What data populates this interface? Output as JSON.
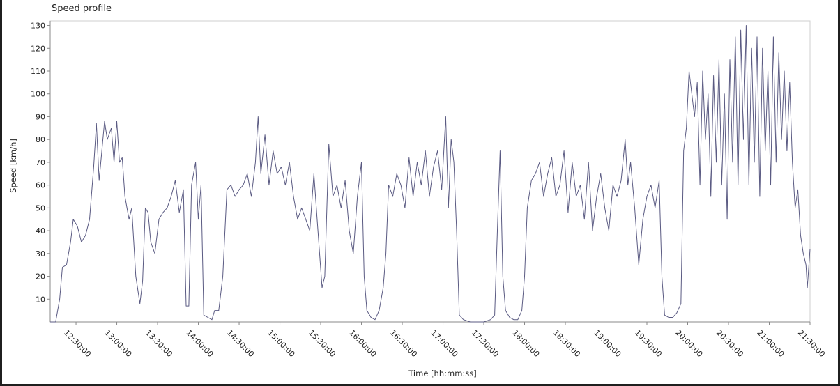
{
  "chart_data": {
    "type": "line",
    "title": "Speed profile",
    "xlabel": "Time  [hh:mm:ss]",
    "ylabel": "Speed [km/h]",
    "x_unit": "time of day",
    "xlim": [
      "12:11:00",
      "21:30:00"
    ],
    "ylim": [
      0,
      132
    ],
    "grid": true,
    "legend": "none",
    "line_color": "#5a5a82",
    "x_ticks": [
      "12:30:00",
      "13:00:00",
      "13:30:00",
      "14:00:00",
      "14:30:00",
      "15:00:00",
      "15:30:00",
      "16:00:00",
      "16:30:00",
      "17:00:00",
      "17:30:00",
      "18:00:00",
      "18:30:00",
      "19:00:00",
      "19:30:00",
      "20:00:00",
      "20:30:00",
      "21:00:00",
      "21:30:00"
    ],
    "y_ticks": [
      10,
      20,
      30,
      40,
      50,
      60,
      70,
      80,
      90,
      100,
      110,
      120,
      130
    ],
    "series": [
      {
        "points": [
          [
            "12:11:00",
            0
          ],
          [
            "12:15:00",
            0
          ],
          [
            "12:18:00",
            10
          ],
          [
            "12:20:00",
            24
          ],
          [
            "12:23:00",
            25
          ],
          [
            "12:26:00",
            35
          ],
          [
            "12:28:00",
            45
          ],
          [
            "12:31:00",
            42
          ],
          [
            "12:34:00",
            35
          ],
          [
            "12:37:00",
            38
          ],
          [
            "12:40:00",
            45
          ],
          [
            "12:43:00",
            68
          ],
          [
            "12:45:00",
            87
          ],
          [
            "12:47:00",
            62
          ],
          [
            "12:49:00",
            75
          ],
          [
            "12:51:00",
            88
          ],
          [
            "12:53:00",
            80
          ],
          [
            "12:56:00",
            85
          ],
          [
            "12:58:00",
            70
          ],
          [
            "13:00:00",
            88
          ],
          [
            "13:02:00",
            70
          ],
          [
            "13:04:00",
            72
          ],
          [
            "13:06:00",
            55
          ],
          [
            "13:09:00",
            45
          ],
          [
            "13:11:00",
            50
          ],
          [
            "13:14:00",
            20
          ],
          [
            "13:17:00",
            8
          ],
          [
            "13:19:00",
            18
          ],
          [
            "13:21:00",
            50
          ],
          [
            "13:23:00",
            48
          ],
          [
            "13:25:00",
            35
          ],
          [
            "13:28:00",
            30
          ],
          [
            "13:31:00",
            45
          ],
          [
            "13:34:00",
            48
          ],
          [
            "13:37:00",
            50
          ],
          [
            "13:40:00",
            55
          ],
          [
            "13:43:00",
            62
          ],
          [
            "13:46:00",
            48
          ],
          [
            "13:49:00",
            58
          ],
          [
            "13:51:00",
            7
          ],
          [
            "13:53:00",
            7
          ],
          [
            "13:55:00",
            60
          ],
          [
            "13:58:00",
            70
          ],
          [
            "14:00:00",
            45
          ],
          [
            "14:02:00",
            60
          ],
          [
            "14:04:00",
            3
          ],
          [
            "14:07:00",
            2
          ],
          [
            "14:10:00",
            1
          ],
          [
            "14:12:00",
            5
          ],
          [
            "14:15:00",
            5
          ],
          [
            "14:18:00",
            20
          ],
          [
            "14:21:00",
            58
          ],
          [
            "14:24:00",
            60
          ],
          [
            "14:27:00",
            55
          ],
          [
            "14:30:00",
            58
          ],
          [
            "14:33:00",
            60
          ],
          [
            "14:36:00",
            65
          ],
          [
            "14:39:00",
            55
          ],
          [
            "14:42:00",
            70
          ],
          [
            "14:44:00",
            90
          ],
          [
            "14:46:00",
            65
          ],
          [
            "14:49:00",
            82
          ],
          [
            "14:52:00",
            60
          ],
          [
            "14:55:00",
            75
          ],
          [
            "14:58:00",
            65
          ],
          [
            "15:01:00",
            68
          ],
          [
            "15:04:00",
            60
          ],
          [
            "15:07:00",
            70
          ],
          [
            "15:10:00",
            55
          ],
          [
            "15:13:00",
            45
          ],
          [
            "15:16:00",
            50
          ],
          [
            "15:19:00",
            45
          ],
          [
            "15:22:00",
            40
          ],
          [
            "15:25:00",
            65
          ],
          [
            "15:28:00",
            40
          ],
          [
            "15:31:00",
            15
          ],
          [
            "15:33:00",
            20
          ],
          [
            "15:36:00",
            78
          ],
          [
            "15:39:00",
            55
          ],
          [
            "15:42:00",
            60
          ],
          [
            "15:45:00",
            50
          ],
          [
            "15:48:00",
            62
          ],
          [
            "15:51:00",
            40
          ],
          [
            "15:54:00",
            30
          ],
          [
            "15:57:00",
            55
          ],
          [
            "16:00:00",
            70
          ],
          [
            "16:02:00",
            20
          ],
          [
            "16:04:00",
            5
          ],
          [
            "16:07:00",
            2
          ],
          [
            "16:10:00",
            1
          ],
          [
            "16:13:00",
            5
          ],
          [
            "16:16:00",
            15
          ],
          [
            "16:18:00",
            30
          ],
          [
            "16:20:00",
            60
          ],
          [
            "16:23:00",
            55
          ],
          [
            "16:26:00",
            65
          ],
          [
            "16:29:00",
            60
          ],
          [
            "16:32:00",
            50
          ],
          [
            "16:35:00",
            72
          ],
          [
            "16:38:00",
            55
          ],
          [
            "16:41:00",
            70
          ],
          [
            "16:44:00",
            60
          ],
          [
            "16:47:00",
            75
          ],
          [
            "16:50:00",
            55
          ],
          [
            "16:53:00",
            68
          ],
          [
            "16:56:00",
            75
          ],
          [
            "16:59:00",
            58
          ],
          [
            "17:02:00",
            90
          ],
          [
            "17:04:00",
            50
          ],
          [
            "17:06:00",
            80
          ],
          [
            "17:08:00",
            70
          ],
          [
            "17:10:00",
            40
          ],
          [
            "17:12:00",
            3
          ],
          [
            "17:15:00",
            1
          ],
          [
            "17:20:00",
            0
          ],
          [
            "17:25:00",
            0
          ],
          [
            "17:30:00",
            0
          ],
          [
            "17:35:00",
            1
          ],
          [
            "17:38:00",
            3
          ],
          [
            "17:40:00",
            40
          ],
          [
            "17:42:00",
            75
          ],
          [
            "17:44:00",
            20
          ],
          [
            "17:46:00",
            5
          ],
          [
            "17:49:00",
            2
          ],
          [
            "17:52:00",
            1
          ],
          [
            "17:55:00",
            1
          ],
          [
            "17:58:00",
            5
          ],
          [
            "18:00:00",
            20
          ],
          [
            "18:02:00",
            50
          ],
          [
            "18:05:00",
            62
          ],
          [
            "18:08:00",
            65
          ],
          [
            "18:11:00",
            70
          ],
          [
            "18:14:00",
            55
          ],
          [
            "18:17:00",
            65
          ],
          [
            "18:20:00",
            72
          ],
          [
            "18:23:00",
            55
          ],
          [
            "18:26:00",
            60
          ],
          [
            "18:29:00",
            75
          ],
          [
            "18:32:00",
            48
          ],
          [
            "18:35:00",
            70
          ],
          [
            "18:38:00",
            55
          ],
          [
            "18:41:00",
            60
          ],
          [
            "18:44:00",
            45
          ],
          [
            "18:47:00",
            70
          ],
          [
            "18:50:00",
            40
          ],
          [
            "18:53:00",
            55
          ],
          [
            "18:56:00",
            65
          ],
          [
            "18:59:00",
            50
          ],
          [
            "19:02:00",
            40
          ],
          [
            "19:05:00",
            60
          ],
          [
            "19:08:00",
            55
          ],
          [
            "19:11:00",
            62
          ],
          [
            "19:14:00",
            80
          ],
          [
            "19:16:00",
            60
          ],
          [
            "19:18:00",
            70
          ],
          [
            "19:21:00",
            50
          ],
          [
            "19:24:00",
            25
          ],
          [
            "19:27:00",
            45
          ],
          [
            "19:30:00",
            55
          ],
          [
            "19:33:00",
            60
          ],
          [
            "19:36:00",
            50
          ],
          [
            "19:39:00",
            62
          ],
          [
            "19:41:00",
            20
          ],
          [
            "19:43:00",
            3
          ],
          [
            "19:46:00",
            2
          ],
          [
            "19:49:00",
            2
          ],
          [
            "19:52:00",
            4
          ],
          [
            "19:55:00",
            8
          ],
          [
            "19:57:00",
            75
          ],
          [
            "19:59:00",
            85
          ],
          [
            "20:01:00",
            110
          ],
          [
            "20:03:00",
            100
          ],
          [
            "20:05:00",
            90
          ],
          [
            "20:07:00",
            105
          ],
          [
            "20:09:00",
            60
          ],
          [
            "20:11:00",
            110
          ],
          [
            "20:13:00",
            80
          ],
          [
            "20:15:00",
            100
          ],
          [
            "20:17:00",
            55
          ],
          [
            "20:19:00",
            108
          ],
          [
            "20:21:00",
            70
          ],
          [
            "20:23:00",
            115
          ],
          [
            "20:25:00",
            60
          ],
          [
            "20:27:00",
            100
          ],
          [
            "20:29:00",
            45
          ],
          [
            "20:31:00",
            115
          ],
          [
            "20:33:00",
            70
          ],
          [
            "20:35:00",
            125
          ],
          [
            "20:37:00",
            60
          ],
          [
            "20:39:00",
            128
          ],
          [
            "20:41:00",
            80
          ],
          [
            "20:43:00",
            130
          ],
          [
            "20:45:00",
            60
          ],
          [
            "20:47:00",
            120
          ],
          [
            "20:49:00",
            70
          ],
          [
            "20:51:00",
            125
          ],
          [
            "20:53:00",
            55
          ],
          [
            "20:55:00",
            120
          ],
          [
            "20:57:00",
            75
          ],
          [
            "20:59:00",
            110
          ],
          [
            "21:01:00",
            60
          ],
          [
            "21:03:00",
            125
          ],
          [
            "21:05:00",
            70
          ],
          [
            "21:07:00",
            118
          ],
          [
            "21:09:00",
            80
          ],
          [
            "21:11:00",
            110
          ],
          [
            "21:13:00",
            75
          ],
          [
            "21:15:00",
            105
          ],
          [
            "21:17:00",
            70
          ],
          [
            "21:19:00",
            50
          ],
          [
            "21:21:00",
            58
          ],
          [
            "21:23:00",
            38
          ],
          [
            "21:25:00",
            30
          ],
          [
            "21:27:00",
            25
          ],
          [
            "21:28:00",
            15
          ],
          [
            "21:30:00",
            32
          ]
        ]
      }
    ]
  }
}
